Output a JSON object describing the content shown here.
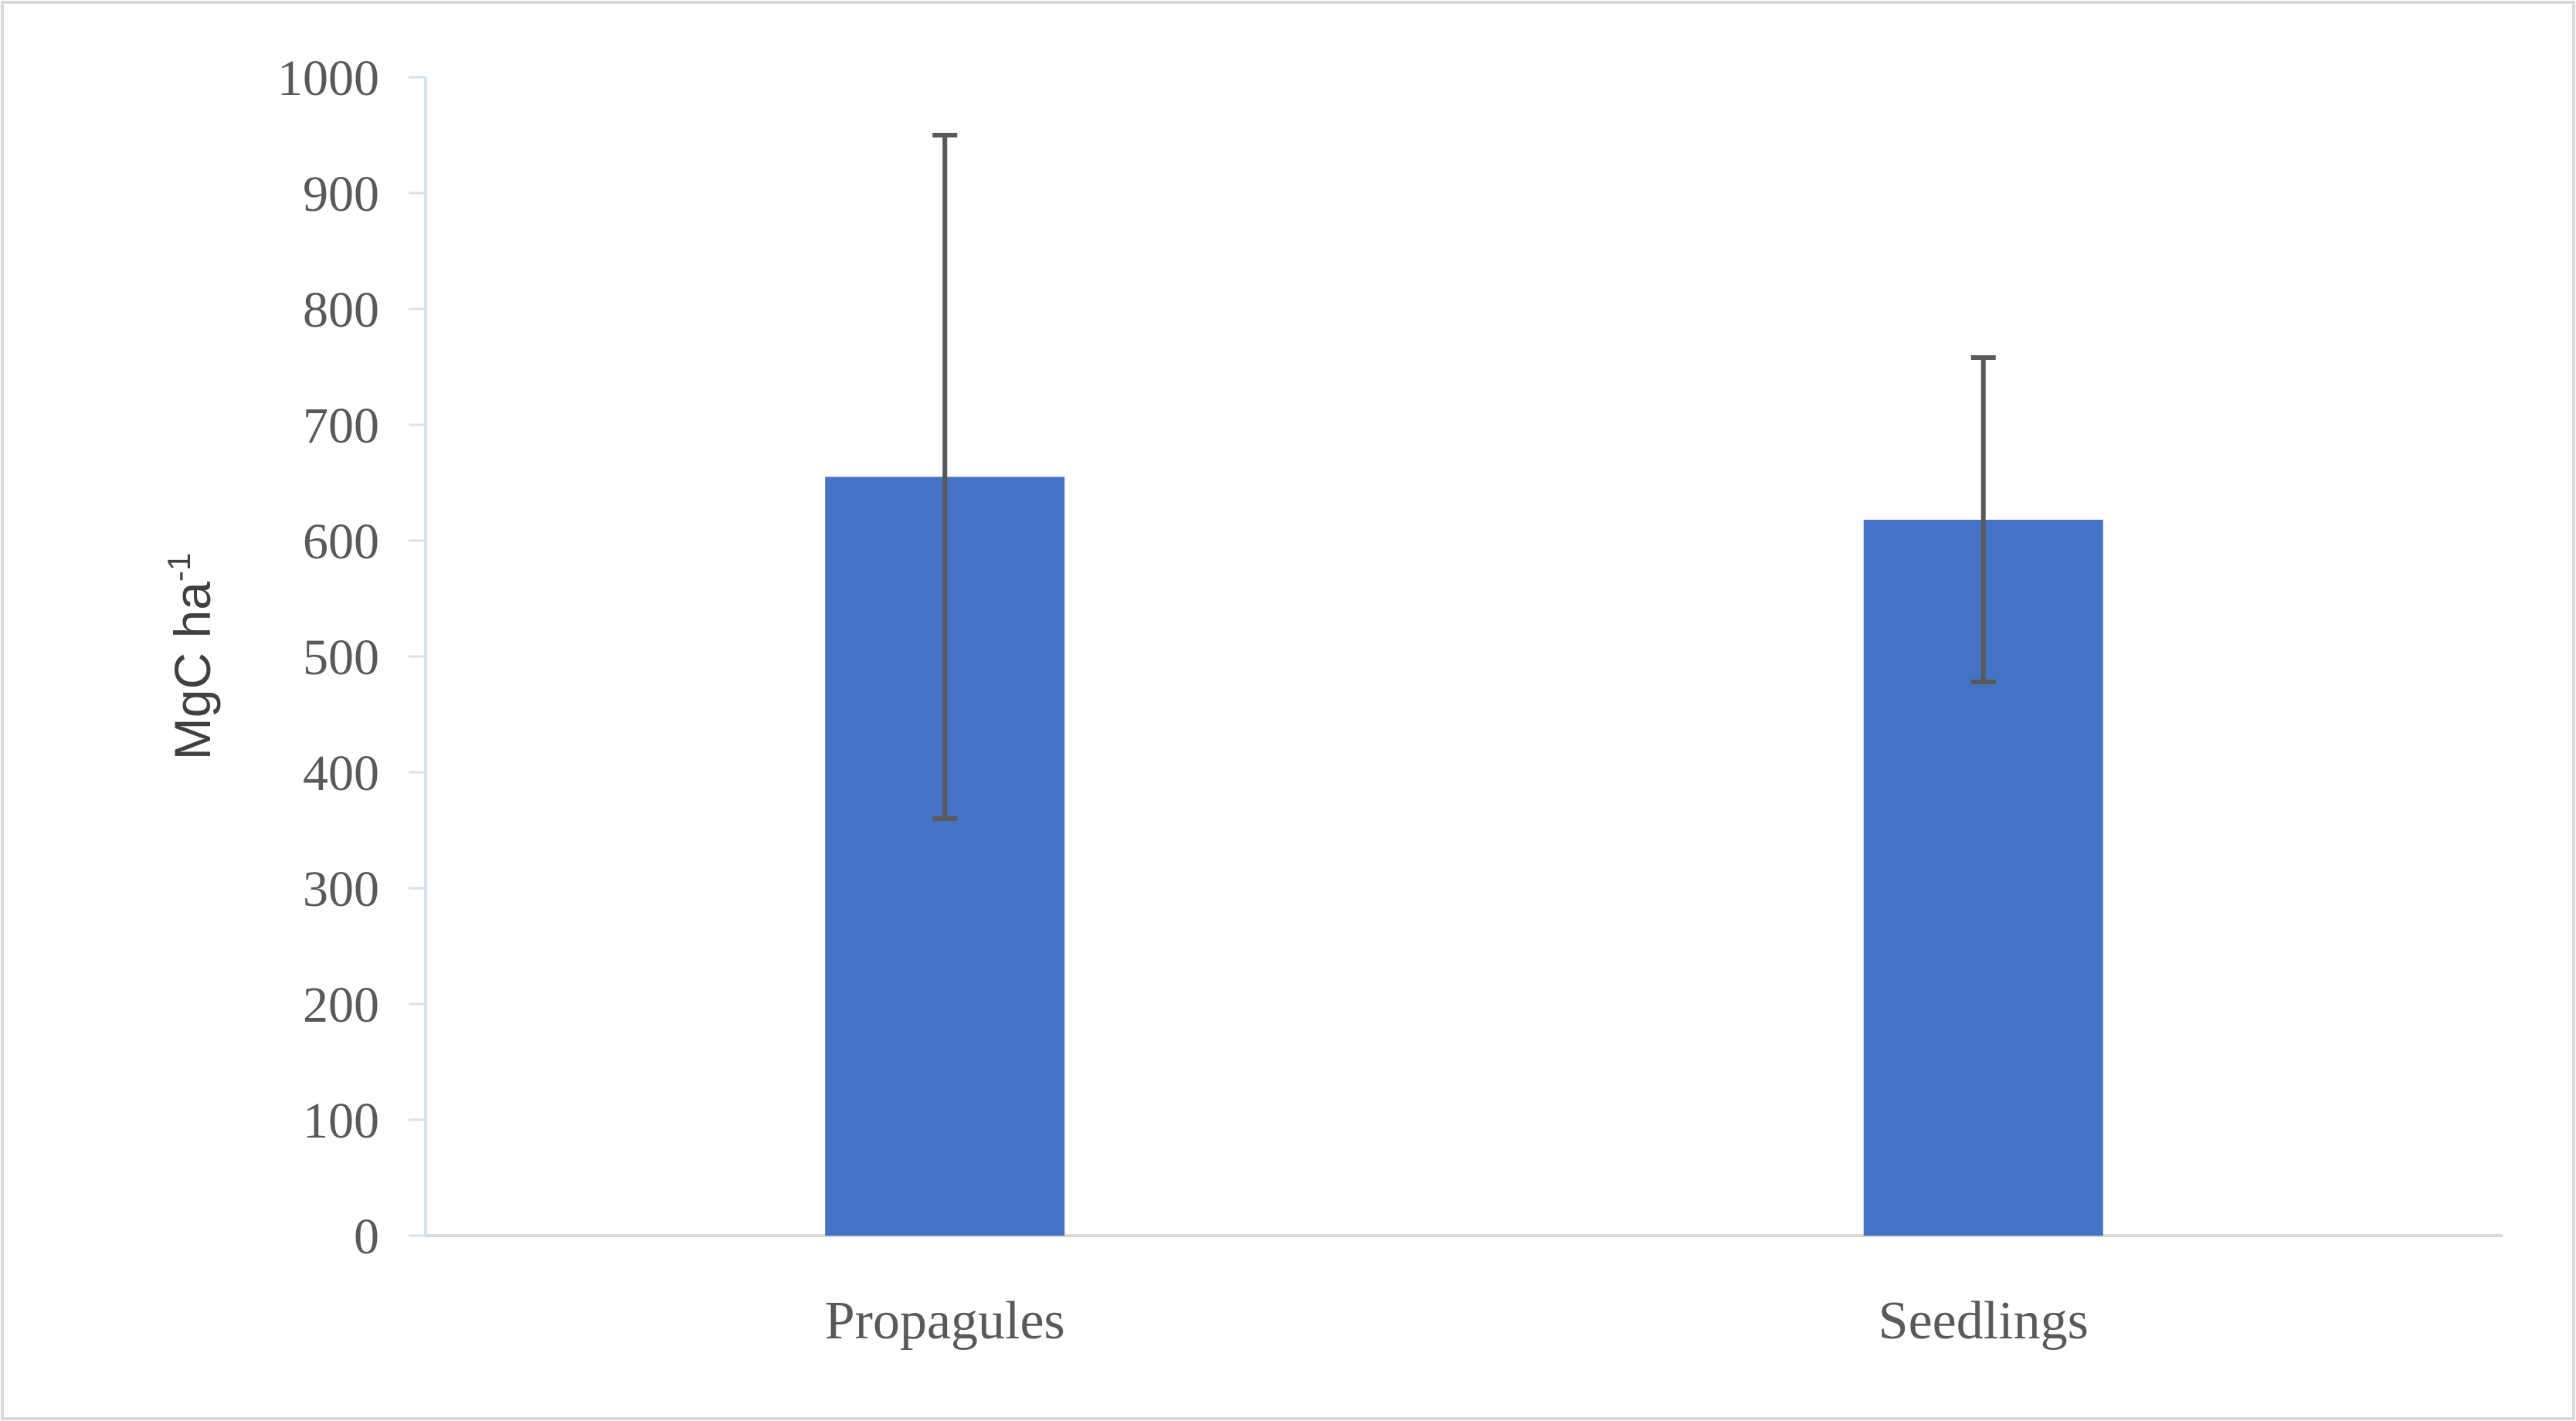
{
  "chart_data": {
    "type": "bar",
    "title": "",
    "xlabel": "",
    "ylabel": "MgC ha",
    "ylabel_superscript": "-1",
    "ylim": [
      0,
      1000
    ],
    "yticks": [
      "0",
      "100",
      "200",
      "300",
      "400",
      "500",
      "600",
      "700",
      "800",
      "900",
      "1000"
    ],
    "categories": [
      "Propagules",
      "Seedlings"
    ],
    "values": [
      655,
      618
    ],
    "error_bars": [
      {
        "low": 360,
        "high": 950
      },
      {
        "low": 478,
        "high": 758
      }
    ],
    "bar_color": "#4472C4",
    "errorbar_color": "#595959",
    "grid": false,
    "legend": "none"
  }
}
